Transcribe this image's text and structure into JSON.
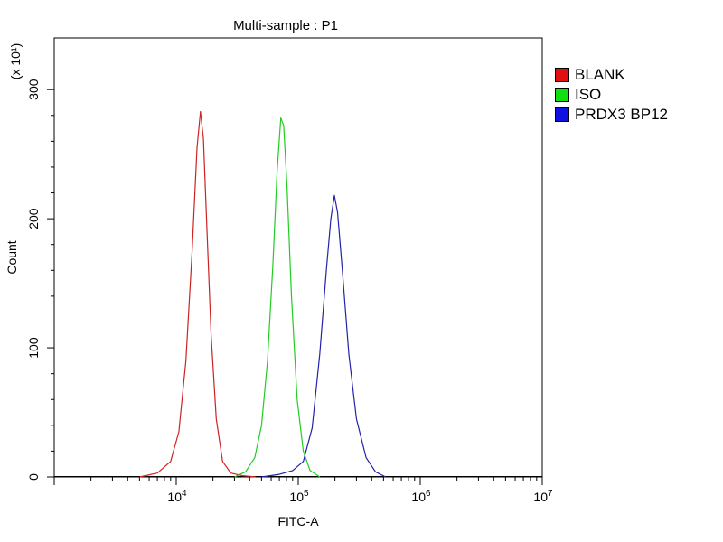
{
  "chart_data": {
    "type": "line",
    "title": "Multi-sample : P1",
    "xlabel": "FITC-A",
    "ylabel": "Count",
    "y_multiplier": "(x 10¹)",
    "x_scale": "log",
    "xlim": [
      1000,
      10000000
    ],
    "ylim": [
      0,
      340
    ],
    "x_ticks": [
      {
        "value": 10000,
        "base": "10",
        "exp": "4"
      },
      {
        "value": 100000,
        "base": "10",
        "exp": "5"
      },
      {
        "value": 1000000,
        "base": "10",
        "exp": "6"
      },
      {
        "value": 10000000,
        "base": "10",
        "exp": "7"
      }
    ],
    "y_ticks": [
      {
        "value": 0,
        "label": "0"
      },
      {
        "value": 100,
        "label": "100"
      },
      {
        "value": 200,
        "label": "200"
      },
      {
        "value": 300,
        "label": "300"
      }
    ],
    "legend_position": "right",
    "series": [
      {
        "name": "BLANK",
        "color": "#cc2222",
        "x": [
          5000,
          7000,
          9000,
          10500,
          12000,
          13500,
          14800,
          15800,
          16700,
          17800,
          19300,
          21300,
          24000,
          28000,
          35000,
          45000
        ],
        "y": [
          0,
          3,
          12,
          35,
          90,
          175,
          255,
          283,
          262,
          195,
          110,
          45,
          12,
          3,
          1,
          0
        ]
      },
      {
        "name": "ISO",
        "color": "#22cc22",
        "x": [
          30000,
          37000,
          44000,
          50000,
          56000,
          62000,
          67000,
          72000,
          76000,
          81000,
          88000,
          98000,
          110000,
          125000,
          150000
        ],
        "y": [
          0,
          4,
          15,
          40,
          90,
          165,
          235,
          278,
          272,
          225,
          140,
          60,
          20,
          5,
          0
        ]
      },
      {
        "name": "PRDX3 BP12",
        "color": "#2222aa",
        "x": [
          50000,
          70000,
          90000,
          110000,
          130000,
          150000,
          170000,
          185000,
          198000,
          210000,
          230000,
          260000,
          300000,
          360000,
          430000,
          520000
        ],
        "y": [
          0,
          2,
          5,
          12,
          38,
          95,
          160,
          200,
          218,
          205,
          160,
          95,
          45,
          15,
          4,
          0
        ]
      }
    ]
  }
}
